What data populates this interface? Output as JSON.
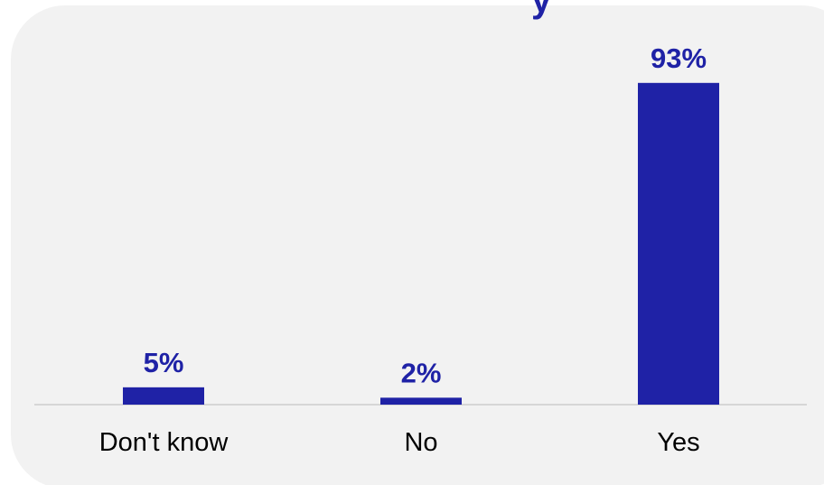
{
  "chart_data": {
    "type": "bar",
    "categories": [
      "Don't know",
      "No",
      "Yes"
    ],
    "values": [
      5,
      2,
      93
    ],
    "data_labels": [
      "5%",
      "2%",
      "93%"
    ],
    "ylim": [
      0,
      100
    ],
    "grid": false,
    "legend": "none",
    "bar_color": "#1f22a6",
    "label_color": "#1f22a6",
    "axis_color": "#cccccc",
    "panel_color": "#f2f2f2"
  }
}
